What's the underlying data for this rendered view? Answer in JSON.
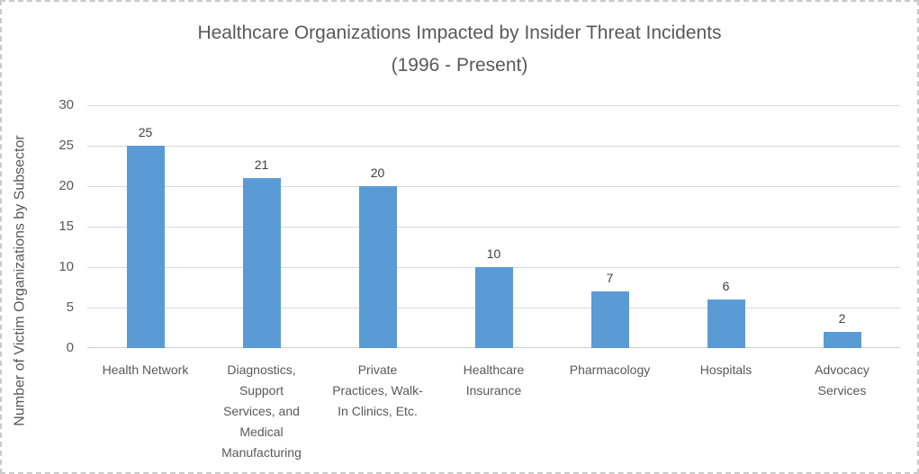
{
  "chart_data": {
    "type": "bar",
    "title": "Healthcare Organizations Impacted by Insider Threat Incidents (1996 - Present)",
    "title_lines": [
      "Healthcare Organizations Impacted by Insider Threat Incidents",
      "(1996 - Present)"
    ],
    "ylabel": "Number of Victim Organizations by Subsector",
    "xlabel": "",
    "categories": [
      "Health Network",
      "Diagnostics, Support Services, and Medical Manufacturing",
      "Private Practices, Walk-In Clinics, Etc.",
      "Healthcare Insurance",
      "Pharmacology",
      "Hospitals",
      "Advocacy Services"
    ],
    "category_lines": [
      [
        "Health Network"
      ],
      [
        "Diagnostics,",
        "Support",
        "Services, and",
        "Medical",
        "Manufacturing"
      ],
      [
        "Private",
        "Practices, Walk-",
        "In Clinics, Etc."
      ],
      [
        "Healthcare",
        "Insurance"
      ],
      [
        "Pharmacology"
      ],
      [
        "Hospitals"
      ],
      [
        "Advocacy",
        "Services"
      ]
    ],
    "values": [
      25,
      21,
      20,
      10,
      7,
      6,
      2
    ],
    "data_labels": [
      "25",
      "21",
      "20",
      "10",
      "7",
      "6",
      "2"
    ],
    "ylim": [
      0,
      30
    ],
    "yticks": [
      0,
      5,
      10,
      15,
      20,
      25,
      30
    ],
    "grid": true,
    "legend": false,
    "colors": {
      "bar": "#5B9BD5",
      "gridline": "#D9D9D9",
      "axis_line": "#CFCFCF",
      "title_text": "#595959",
      "axis_text": "#595959",
      "value_label_text": "#404040",
      "background": "#FFFFFF",
      "frame_border": "#C9C9C9"
    }
  }
}
